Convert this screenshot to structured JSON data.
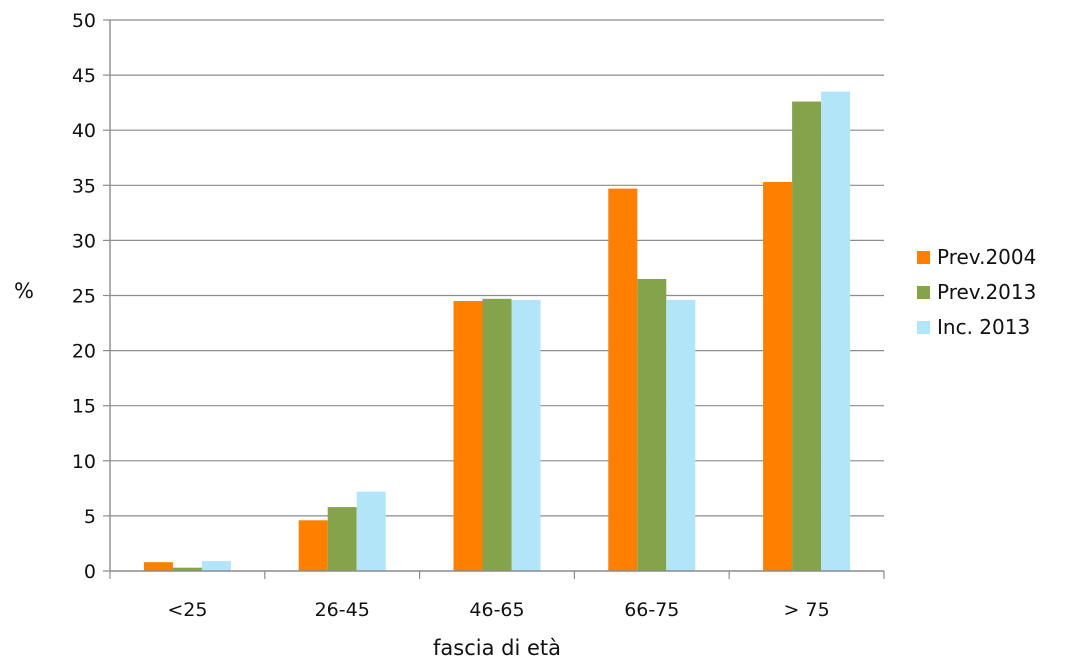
{
  "chart_data": {
    "type": "bar",
    "xlabel": "fascia di età",
    "ylabel": "%",
    "ylim": [
      0,
      50
    ],
    "yticks": [
      0,
      5,
      10,
      15,
      20,
      25,
      30,
      35,
      40,
      45,
      50
    ],
    "grid": true,
    "legend_position": "right",
    "categories": [
      "<25",
      "26-45",
      "46-65",
      "66-75",
      "> 75"
    ],
    "series": [
      {
        "name": "Prev.2004",
        "color": "#ff7f00",
        "values": [
          0.8,
          4.6,
          24.5,
          34.7,
          35.3
        ]
      },
      {
        "name": "Prev.2013",
        "color": "#85a34a",
        "values": [
          0.3,
          5.8,
          24.7,
          26.5,
          42.6
        ]
      },
      {
        "name": "Inc. 2013",
        "color": "#b3e5f8",
        "values": [
          0.9,
          7.2,
          24.6,
          24.6,
          43.5
        ]
      }
    ]
  }
}
